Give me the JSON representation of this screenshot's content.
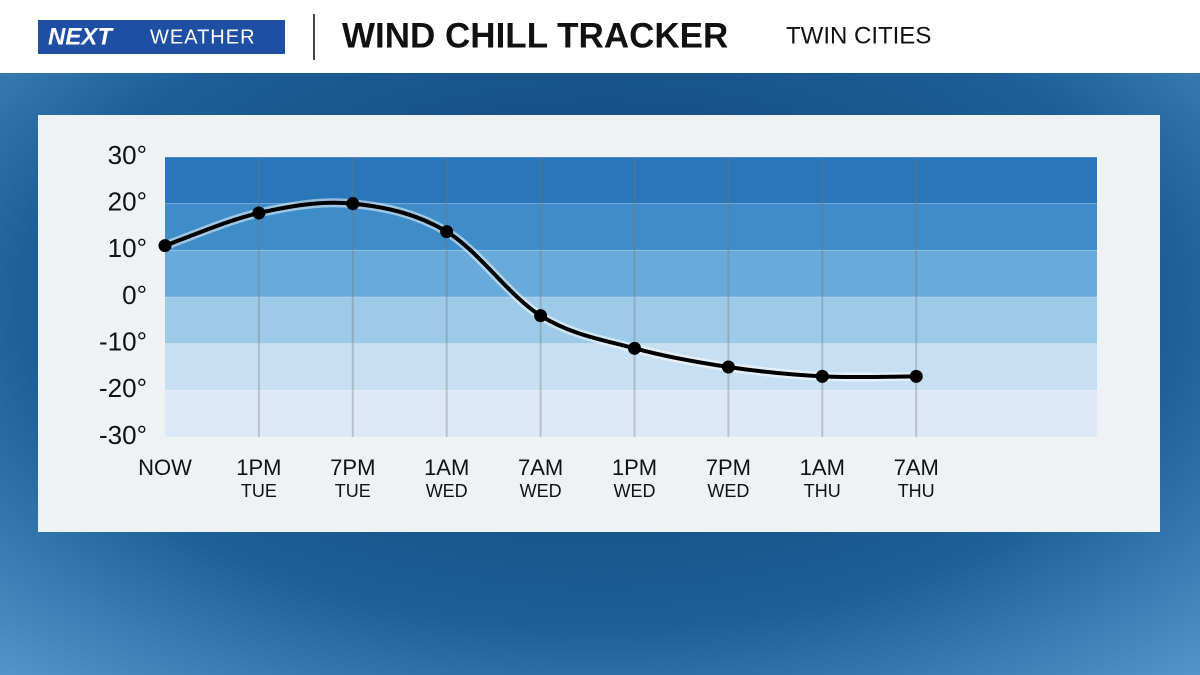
{
  "brand": [
    "NEXT",
    "WEATHER"
  ],
  "chart_data": {
    "type": "line",
    "title": "WIND CHILL TRACKER",
    "subtitle": "TWIN CITIES",
    "categories": [
      "NOW",
      "1PM",
      "7PM",
      "1AM",
      "7AM",
      "1PM",
      "7PM",
      "1AM",
      "7AM"
    ],
    "category_sublabels": [
      null,
      "TUE",
      "TUE",
      "WED",
      "WED",
      "WED",
      "WED",
      "THU",
      "THU"
    ],
    "values": [
      11,
      18,
      20,
      14,
      -4,
      -11,
      -15,
      -17,
      -17
    ],
    "color": "#000000",
    "ylim": [
      -30,
      30
    ],
    "yticks": [
      {
        "value": 30,
        "label": "30°"
      },
      {
        "value": 20,
        "label": "20°"
      },
      {
        "value": 10,
        "label": "10°"
      },
      {
        "value": 0,
        "label": "0°"
      },
      {
        "value": -10,
        "label": "-10°"
      },
      {
        "value": -20,
        "label": "-20°"
      },
      {
        "value": -30,
        "label": "-30°"
      }
    ],
    "band_colors": [
      "#2a76b9",
      "#3f8dc8",
      "#68aad9",
      "#9dcae6",
      "#c7dff2",
      "#dde9f7"
    ],
    "grid": true
  }
}
